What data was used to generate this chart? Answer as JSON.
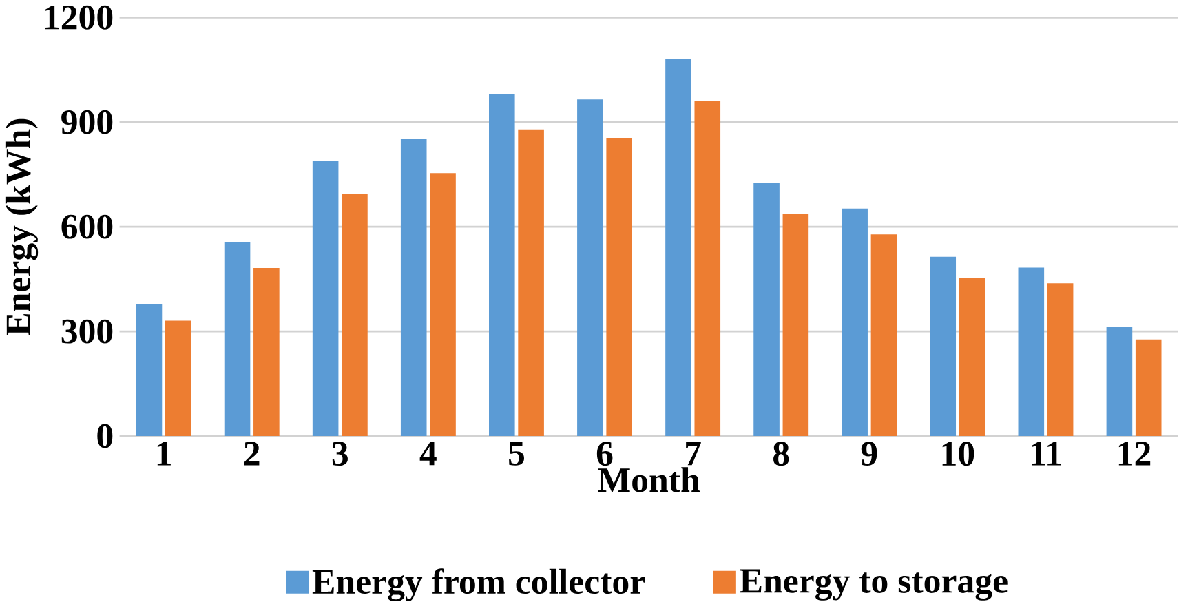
{
  "chart_data": {
    "type": "bar",
    "xlabel": "Month",
    "ylabel": "Energy (kWh)",
    "categories": [
      "1",
      "2",
      "3",
      "4",
      "5",
      "6",
      "7",
      "8",
      "9",
      "10",
      "11",
      "12"
    ],
    "series": [
      {
        "name": "Energy from collector",
        "color": "#5b9bd5",
        "values": [
          377,
          557,
          788,
          851,
          980,
          965,
          1080,
          725,
          652,
          514,
          483,
          312
        ]
      },
      {
        "name": "Energy to storage",
        "color": "#ed7d31",
        "values": [
          331,
          482,
          695,
          754,
          877,
          854,
          960,
          637,
          578,
          452,
          438,
          277
        ]
      }
    ],
    "ylim": [
      0,
      1200
    ],
    "yticks": [
      0,
      300,
      600,
      900,
      1200
    ],
    "grid": "y",
    "legend": "bottom"
  }
}
